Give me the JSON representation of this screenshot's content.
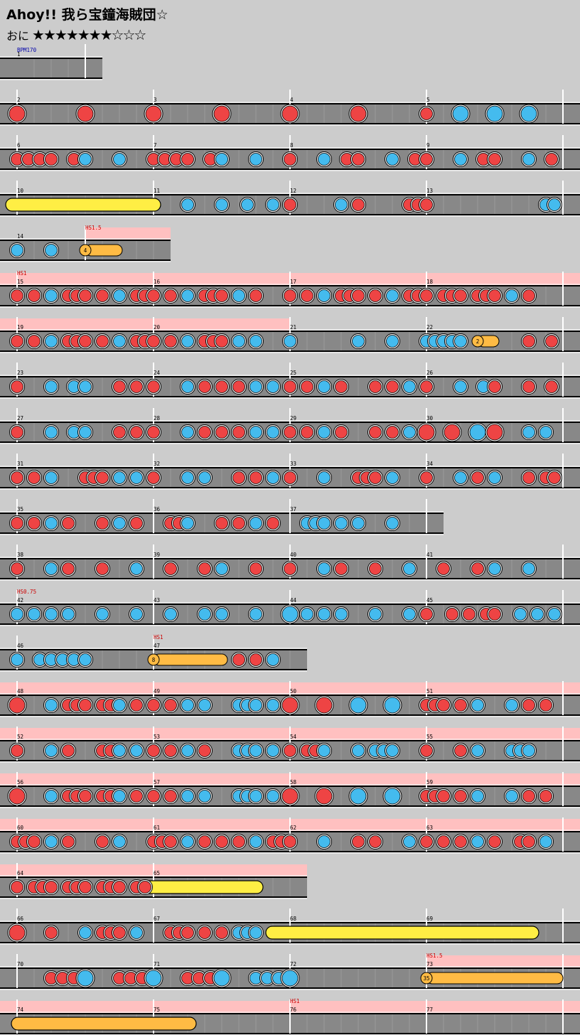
{
  "song": {
    "title": "Ahoy!! 我ら宝鐘海賊団☆"
  },
  "difficulty": {
    "label": "おに",
    "stars_text": "★★★★★★★☆☆☆",
    "level": 7,
    "max_level": 10
  },
  "colors": {
    "don": "#ee4444",
    "ka": "#44bbee",
    "drumroll": "#ffee44",
    "balloon": "#ffbb44",
    "scroll_zone": "#ffc0c0",
    "lane": "#888888"
  },
  "chart_data": {
    "type": "taiko-score",
    "events": [
      "BPM170",
      "HS1.5",
      "HS1",
      "HS0.75",
      "HS1",
      "HS1.5",
      "HS1"
    ],
    "measure_numbers": [
      "1",
      "2",
      "3",
      "4",
      "5",
      "6",
      "7",
      "8",
      "9",
      "10",
      "11",
      "12",
      "13",
      "14",
      "15",
      "16",
      "17",
      "18",
      "19",
      "20",
      "21",
      "22",
      "23",
      "24",
      "25",
      "26",
      "27",
      "28",
      "29",
      "30",
      "31",
      "32",
      "33",
      "34",
      "35",
      "36",
      "37",
      "38",
      "39",
      "40",
      "41",
      "42",
      "43",
      "44",
      "45",
      "46",
      "47",
      "48",
      "49",
      "50",
      "51",
      "52",
      "53",
      "54",
      "55",
      "56",
      "57",
      "58",
      "59",
      "60",
      "61",
      "62",
      "63",
      "64",
      "65",
      "66",
      "67",
      "68",
      "69",
      "70",
      "71",
      "72",
      "73",
      "74",
      "75",
      "76",
      "77"
    ],
    "balloon_counts": [
      "4",
      "2",
      "8",
      "35"
    ]
  }
}
